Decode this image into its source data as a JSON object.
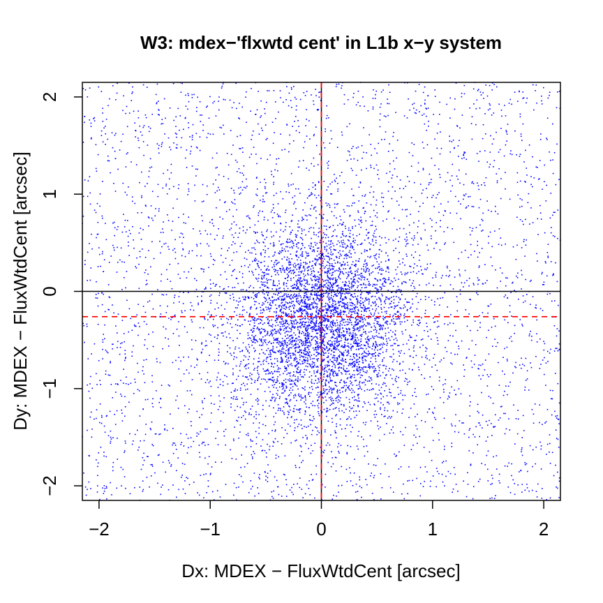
{
  "chart_data": {
    "type": "scatter",
    "title": "W3: mdex−'flxwtd cent' in L1b x−y system",
    "xlabel": "Dx: MDEX − FluxWtdCent [arcsec]",
    "ylabel": "Dy: MDEX − FluxWtdCent [arcsec]",
    "xlim": [
      -2.15,
      2.15
    ],
    "ylim": [
      -2.15,
      2.15
    ],
    "x_ticks": [
      -2,
      -1,
      0,
      1,
      2
    ],
    "x_tick_labels": [
      "−2",
      "−1",
      "0",
      "1",
      "2"
    ],
    "y_ticks": [
      -2,
      -1,
      0,
      1,
      2
    ],
    "y_tick_labels": [
      "−2",
      "−1",
      "0",
      "1",
      "2"
    ],
    "grid": false,
    "legend": "none",
    "point_color": "#0000ff",
    "reference_lines": [
      {
        "orientation": "horizontal",
        "value": 0,
        "style": "solid",
        "color": "#000000"
      },
      {
        "orientation": "vertical",
        "value": 0,
        "style": "solid",
        "color": "#000000"
      },
      {
        "orientation": "horizontal",
        "value": -0.26,
        "style": "dashed",
        "color": "#ff0000"
      },
      {
        "orientation": "vertical",
        "value": 0.0,
        "style": "dashed",
        "color": "#ff0000"
      }
    ],
    "series": [
      {
        "distribution": "dense core plus wide uniform halo",
        "core_center": [
          0.0,
          -0.3
        ],
        "core_spread": [
          0.4,
          0.5
        ],
        "core_count": 4200,
        "halo_count": 3200,
        "halo_range": [
          -2.15,
          2.15
        ]
      }
    ]
  }
}
